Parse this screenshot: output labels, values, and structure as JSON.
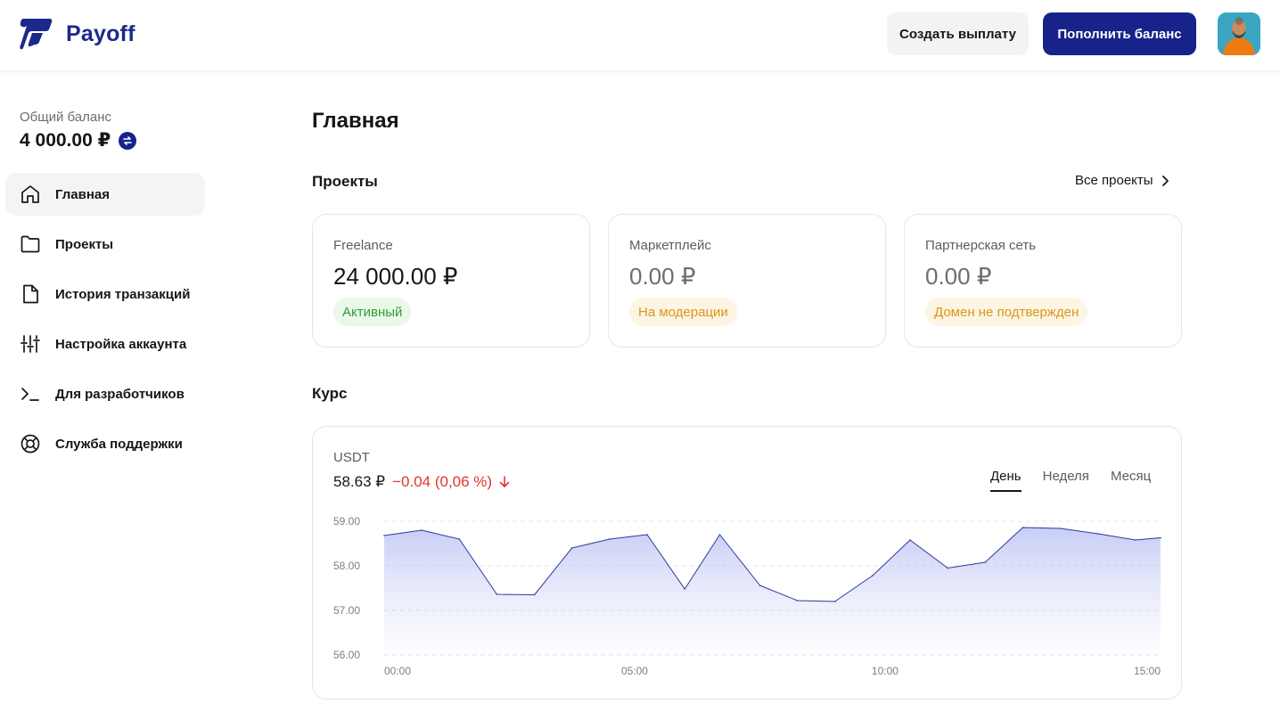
{
  "header": {
    "brand": "Payoff",
    "create_payout": "Создать выплату",
    "top_up": "Пополнить баланс"
  },
  "sidebar": {
    "balance_label": "Общий баланс",
    "balance_value": "4 000.00 ₽",
    "items": [
      {
        "label": "Главная",
        "icon": "home-icon",
        "active": true
      },
      {
        "label": "Проекты",
        "icon": "folder-icon",
        "active": false
      },
      {
        "label": "История транзакций",
        "icon": "document-icon",
        "active": false
      },
      {
        "label": "Настройка аккаунта",
        "icon": "sliders-icon",
        "active": false
      },
      {
        "label": "Для разработчиков",
        "icon": "terminal-icon",
        "active": false
      },
      {
        "label": "Служба поддержки",
        "icon": "lifebuoy-icon",
        "active": false
      }
    ]
  },
  "main": {
    "title": "Главная",
    "projects_title": "Проекты",
    "all_projects": "Все проекты",
    "projects": [
      {
        "name": "Freelance",
        "amount": "24 000.00 ₽",
        "status": "Активный",
        "status_color": "#2f9e33"
      },
      {
        "name": "Маркетплейс",
        "amount": "0.00 ₽",
        "status": "На модерации",
        "status_color": "#d9971a"
      },
      {
        "name": "Партнерская сеть",
        "amount": "0.00 ₽",
        "status": "Домен не подтвержден",
        "status_color": "#d9971a"
      }
    ],
    "rate_title": "Курс",
    "rate": {
      "asset": "USDT",
      "value": "58.63 ₽",
      "change": "−0.04 (0,06 %)",
      "tabs": [
        "День",
        "Неделя",
        "Месяц"
      ],
      "active_tab": "День"
    }
  },
  "colors": {
    "brand": "#17238a",
    "negative": "#e0342e",
    "line": "#2b3a9c"
  },
  "chart_data": {
    "type": "area",
    "x_ticks": [
      "00:00",
      "05:00",
      "10:00",
      "15:00"
    ],
    "y_ticks": [
      "59.00",
      "58.00",
      "57.00",
      "56.00"
    ],
    "ylim": [
      56,
      59
    ],
    "xlim": [
      0,
      15.5
    ],
    "grid": true,
    "x": [
      0,
      0.75,
      1.5,
      2.25,
      3.0,
      3.75,
      4.5,
      5.25,
      6.0,
      6.7,
      7.5,
      8.25,
      9.0,
      9.75,
      10.5,
      11.25,
      12.0,
      12.75,
      13.5,
      14.25,
      15.0,
      15.5
    ],
    "values": [
      58.68,
      58.8,
      58.6,
      57.36,
      57.35,
      58.4,
      58.6,
      58.7,
      57.48,
      58.7,
      57.56,
      57.22,
      57.2,
      57.78,
      58.58,
      57.95,
      58.08,
      58.86,
      58.84,
      58.72,
      58.58,
      58.63
    ]
  }
}
